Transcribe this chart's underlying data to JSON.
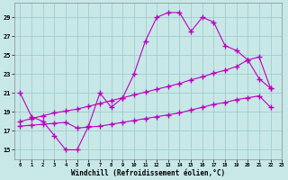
{
  "xlabel": "Windchill (Refroidissement éolien,°C)",
  "background_color": "#c8e8e8",
  "grid_color": "#a0cccc",
  "line_color": "#bb00bb",
  "xlim_min": -0.5,
  "xlim_max": 23,
  "ylim_min": 14,
  "ylim_max": 30.5,
  "xticks": [
    0,
    1,
    2,
    3,
    4,
    5,
    6,
    7,
    8,
    9,
    10,
    11,
    12,
    13,
    14,
    15,
    16,
    17,
    18,
    19,
    20,
    21,
    22,
    23
  ],
  "yticks": [
    15,
    17,
    19,
    21,
    23,
    25,
    27,
    29
  ],
  "s1_x": [
    0,
    1,
    2,
    3,
    4,
    5,
    6,
    7,
    8,
    9,
    10,
    11,
    12,
    13,
    14,
    15,
    16,
    17,
    18,
    19,
    20,
    21,
    22
  ],
  "s1_y": [
    21.0,
    18.5,
    18.0,
    16.5,
    15.0,
    15.0,
    17.5,
    21.0,
    19.5,
    20.5,
    23.0,
    26.5,
    29.0,
    29.5,
    29.5,
    27.5,
    29.0,
    28.5,
    26.0,
    25.5,
    24.5,
    22.5,
    21.5
  ],
  "s2_x": [
    0,
    1,
    2,
    3,
    4,
    5,
    6,
    7,
    8,
    9,
    10,
    11,
    12,
    13,
    14,
    15,
    16,
    17,
    18,
    19,
    20,
    21,
    22
  ],
  "s2_y": [
    18.0,
    18.3,
    18.6,
    18.9,
    19.1,
    19.3,
    19.6,
    19.9,
    20.2,
    20.5,
    20.8,
    21.1,
    21.4,
    21.7,
    22.0,
    22.4,
    22.7,
    23.1,
    23.4,
    23.8,
    24.5,
    24.8,
    21.5
  ],
  "s3_x": [
    0,
    1,
    2,
    3,
    4,
    5,
    6,
    7,
    8,
    9,
    10,
    11,
    12,
    13,
    14,
    15,
    16,
    17,
    18,
    19,
    20,
    21,
    22
  ],
  "s3_y": [
    17.5,
    17.6,
    17.7,
    17.8,
    17.9,
    17.3,
    17.4,
    17.5,
    17.7,
    17.9,
    18.1,
    18.3,
    18.5,
    18.7,
    18.9,
    19.2,
    19.5,
    19.8,
    20.0,
    20.3,
    20.5,
    20.7,
    19.5
  ]
}
